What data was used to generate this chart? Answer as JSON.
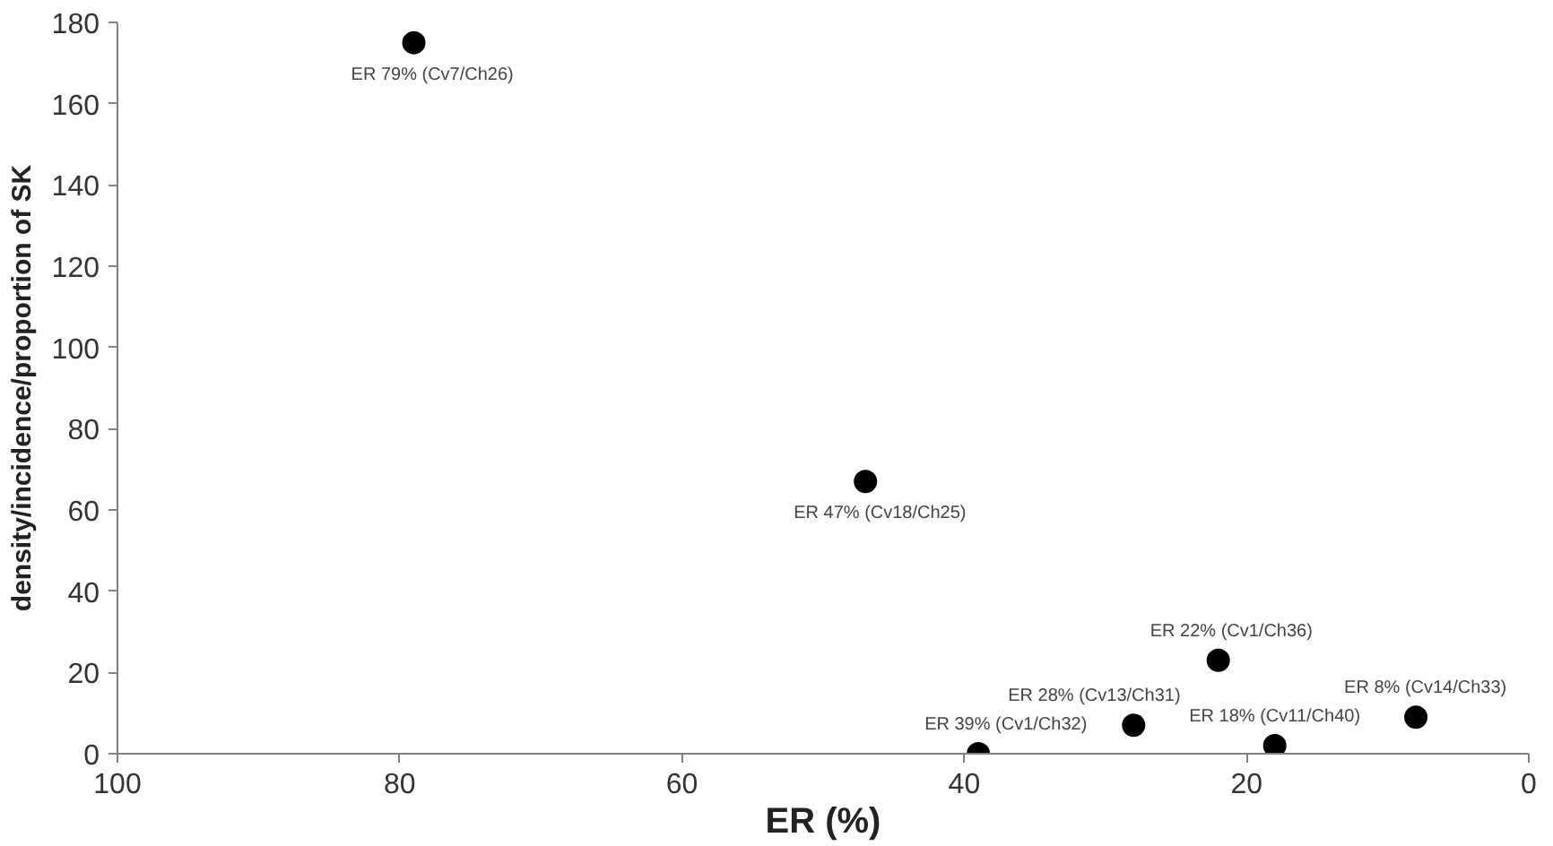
{
  "chart_data": {
    "type": "scatter",
    "xlabel": "ER (%)",
    "ylabel": "density/incidence/proportion of SK",
    "x": [
      79,
      47,
      22,
      28,
      39,
      18,
      8
    ],
    "values": [
      175,
      67,
      23,
      7,
      0,
      2,
      9
    ],
    "color": "#000000",
    "marker": "circle",
    "grid": false,
    "xlim": [
      100,
      0
    ],
    "xticks": [
      100,
      80,
      60,
      40,
      20,
      0
    ],
    "ylim": [
      0,
      180
    ],
    "yticks": [
      0,
      20,
      40,
      60,
      80,
      100,
      120,
      140,
      160,
      180
    ],
    "annotations": [
      {
        "text": "ER 79% (Cv7/Ch26)",
        "x": 79,
        "y": 175
      },
      {
        "text": "ER 47% (Cv18/Ch25)",
        "x": 47,
        "y": 67
      },
      {
        "text": "ER 22% (Cv1/Ch36)",
        "x": 22,
        "y": 23
      },
      {
        "text": "ER 28% (Cv13/Ch31)",
        "x": 28,
        "y": 7
      },
      {
        "text": "ER 39% (Cv1/Ch32)",
        "x": 39,
        "y": 0
      },
      {
        "text": "ER 18% (Cv11/Ch40)",
        "x": 18,
        "y": 2
      },
      {
        "text": "ER 8% (Cv14/Ch33)",
        "x": 8,
        "y": 9
      }
    ]
  }
}
